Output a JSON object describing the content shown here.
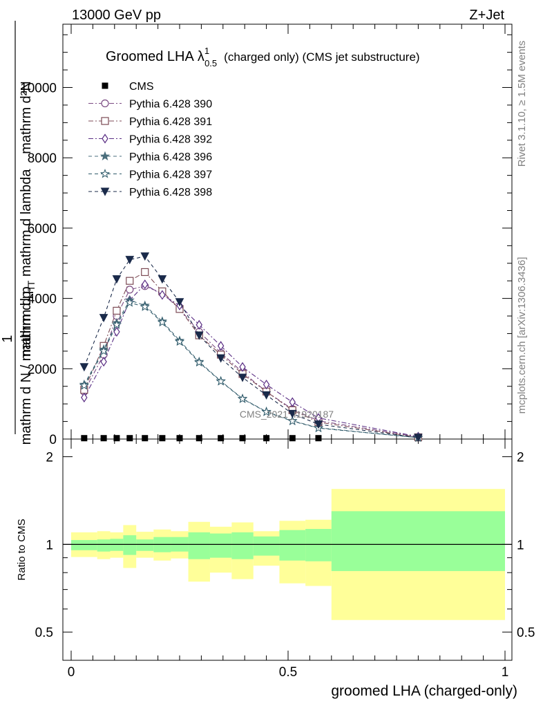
{
  "header": {
    "energy_label": "13000 GeV pp",
    "process_label": "Z+Jet"
  },
  "side_labels": {
    "rivet": "Rivet 3.1.10, ≥ 1.5M events",
    "mcplots": "mcplots.cern.ch [arXiv:1306.3436]"
  },
  "watermark": "CMS_2021_I1920187",
  "main_title": {
    "prefix": "Groomed LHA",
    "symbol": "λ",
    "sup": "1",
    "sub": "0.5",
    "suffix": "(charged only) (CMS jet substructure)"
  },
  "colors": {
    "ratio_inner": "#99ff99",
    "ratio_outer": "#ffff99"
  },
  "chart_data": [
    {
      "type": "line",
      "xlabel": "",
      "ylabel": "1 / mathrm d N / mathrm d p_T mathrm d p_T mathrm d lambda / mathrm d^2N",
      "ylabel_parts": {
        "top": "mathrm d²N",
        "top2": "mathrm d p",
        "top2_sub": "T",
        "top2_rest": "mathrm d lambda",
        "frac_num": "1",
        "frac_den": "mathrm d N / mathrm d p",
        "frac_den_sub": "T"
      },
      "xlim": [
        0,
        1
      ],
      "ylim": [
        0,
        11800
      ],
      "yticks": [
        0,
        2000,
        4000,
        6000,
        8000,
        10000
      ],
      "legend_position": "top-left",
      "series": [
        {
          "name": "CMS",
          "color": "#000000",
          "marker": "square",
          "dash": "none",
          "x": [
            0.03,
            0.075,
            0.105,
            0.135,
            0.17,
            0.21,
            0.25,
            0.295,
            0.345,
            0.395,
            0.45,
            0.51,
            0.57,
            0.8
          ],
          "values": [
            25,
            25,
            25,
            25,
            25,
            25,
            25,
            25,
            25,
            25,
            25,
            25,
            25,
            25
          ]
        },
        {
          "name": "Pythia 6.428 390",
          "color": "#7a4a82",
          "marker": "circle-open",
          "dash": "7,3,2,3",
          "x": [
            0.03,
            0.075,
            0.105,
            0.135,
            0.17,
            0.21,
            0.25,
            0.295,
            0.345,
            0.395,
            0.45,
            0.51,
            0.57,
            0.8
          ],
          "values": [
            1350,
            2400,
            3500,
            4250,
            4350,
            4150,
            3700,
            3050,
            2450,
            1900,
            1350,
            850,
            520,
            60
          ]
        },
        {
          "name": "Pythia 6.428 391",
          "color": "#7c4a54",
          "marker": "square-open",
          "dash": "7,3,2,3",
          "x": [
            0.03,
            0.075,
            0.105,
            0.135,
            0.17,
            0.21,
            0.25,
            0.295,
            0.345,
            0.395,
            0.45,
            0.51,
            0.57,
            0.8
          ],
          "values": [
            1400,
            2650,
            3650,
            4500,
            4750,
            4200,
            3700,
            2950,
            2400,
            1850,
            1350,
            820,
            480,
            50
          ]
        },
        {
          "name": "Pythia 6.428 392",
          "color": "#5a2e84",
          "marker": "diamond-open",
          "dash": "7,3,2,3",
          "x": [
            0.03,
            0.075,
            0.105,
            0.135,
            0.17,
            0.21,
            0.25,
            0.295,
            0.345,
            0.395,
            0.45,
            0.51,
            0.57,
            0.8
          ],
          "values": [
            1180,
            2200,
            3050,
            3950,
            4400,
            4100,
            3800,
            3250,
            2650,
            2050,
            1550,
            1050,
            600,
            70
          ]
        },
        {
          "name": "Pythia 6.428 396",
          "color": "#4a6e7c",
          "marker": "star",
          "dash": "5,4",
          "x": [
            0.03,
            0.075,
            0.105,
            0.135,
            0.17,
            0.21,
            0.25,
            0.295,
            0.345,
            0.395,
            0.45,
            0.51,
            0.57,
            0.8
          ],
          "values": [
            1550,
            2550,
            3300,
            3950,
            3800,
            3350,
            2800,
            2200,
            1650,
            1150,
            780,
            520,
            320,
            40
          ]
        },
        {
          "name": "Pythia 6.428 397",
          "color": "#2e5a6a",
          "marker": "star-open",
          "dash": "5,4",
          "x": [
            0.03,
            0.075,
            0.105,
            0.135,
            0.17,
            0.21,
            0.25,
            0.295,
            0.345,
            0.395,
            0.45,
            0.51,
            0.57,
            0.8
          ],
          "values": [
            1520,
            2500,
            3250,
            3880,
            3760,
            3320,
            2770,
            2180,
            1640,
            1140,
            770,
            510,
            310,
            40
          ]
        },
        {
          "name": "Pythia 6.428 398",
          "color": "#1a2a4a",
          "marker": "triangle-down",
          "dash": "5,4",
          "x": [
            0.03,
            0.075,
            0.105,
            0.135,
            0.17,
            0.21,
            0.25,
            0.295,
            0.345,
            0.395,
            0.45,
            0.51,
            0.57,
            0.8
          ],
          "values": [
            2050,
            3450,
            4550,
            5100,
            5200,
            4550,
            3900,
            2950,
            2300,
            1750,
            1250,
            720,
            420,
            40
          ]
        }
      ]
    },
    {
      "type": "area",
      "xlabel": "groomed LHA (charged-only)",
      "ylabel": "Ratio to CMS",
      "xlim": [
        0,
        1
      ],
      "ylim": [
        0.4,
        2.3
      ],
      "yticks": [
        0.5,
        1,
        2
      ],
      "xticks": [
        0,
        0.5,
        1
      ],
      "reference_line": 1,
      "bins": [
        {
          "x_low": 0.0,
          "x_high": 0.06,
          "inner_low": 0.955,
          "inner_high": 1.035,
          "outer_low": 0.905,
          "outer_high": 1.1
        },
        {
          "x_low": 0.06,
          "x_high": 0.09,
          "inner_low": 0.945,
          "inner_high": 1.04,
          "outer_low": 0.89,
          "outer_high": 1.11
        },
        {
          "x_low": 0.09,
          "x_high": 0.12,
          "inner_low": 0.95,
          "inner_high": 1.045,
          "outer_low": 0.9,
          "outer_high": 1.1
        },
        {
          "x_low": 0.12,
          "x_high": 0.15,
          "inner_low": 0.92,
          "inner_high": 1.075,
          "outer_low": 0.83,
          "outer_high": 1.165
        },
        {
          "x_low": 0.15,
          "x_high": 0.19,
          "inner_low": 0.95,
          "inner_high": 1.04,
          "outer_low": 0.9,
          "outer_high": 1.105
        },
        {
          "x_low": 0.19,
          "x_high": 0.23,
          "inner_low": 0.94,
          "inner_high": 1.06,
          "outer_low": 0.88,
          "outer_high": 1.125
        },
        {
          "x_low": 0.23,
          "x_high": 0.27,
          "inner_low": 0.945,
          "inner_high": 1.06,
          "outer_low": 0.895,
          "outer_high": 1.11
        },
        {
          "x_low": 0.27,
          "x_high": 0.32,
          "inner_low": 0.89,
          "inner_high": 1.1,
          "outer_low": 0.745,
          "outer_high": 1.195
        },
        {
          "x_low": 0.32,
          "x_high": 0.37,
          "inner_low": 0.9,
          "inner_high": 1.09,
          "outer_low": 0.8,
          "outer_high": 1.15
        },
        {
          "x_low": 0.37,
          "x_high": 0.42,
          "inner_low": 0.89,
          "inner_high": 1.1,
          "outer_low": 0.76,
          "outer_high": 1.19
        },
        {
          "x_low": 0.42,
          "x_high": 0.48,
          "inner_low": 0.915,
          "inner_high": 1.065,
          "outer_low": 0.845,
          "outer_high": 1.11
        },
        {
          "x_low": 0.48,
          "x_high": 0.54,
          "inner_low": 0.88,
          "inner_high": 1.12,
          "outer_low": 0.735,
          "outer_high": 1.205
        },
        {
          "x_low": 0.54,
          "x_high": 0.6,
          "inner_low": 0.875,
          "inner_high": 1.13,
          "outer_low": 0.72,
          "outer_high": 1.215
        },
        {
          "x_low": 0.6,
          "x_high": 1.0,
          "inner_low": 0.81,
          "inner_high": 1.3,
          "outer_low": 0.55,
          "outer_high": 1.55
        }
      ]
    }
  ]
}
